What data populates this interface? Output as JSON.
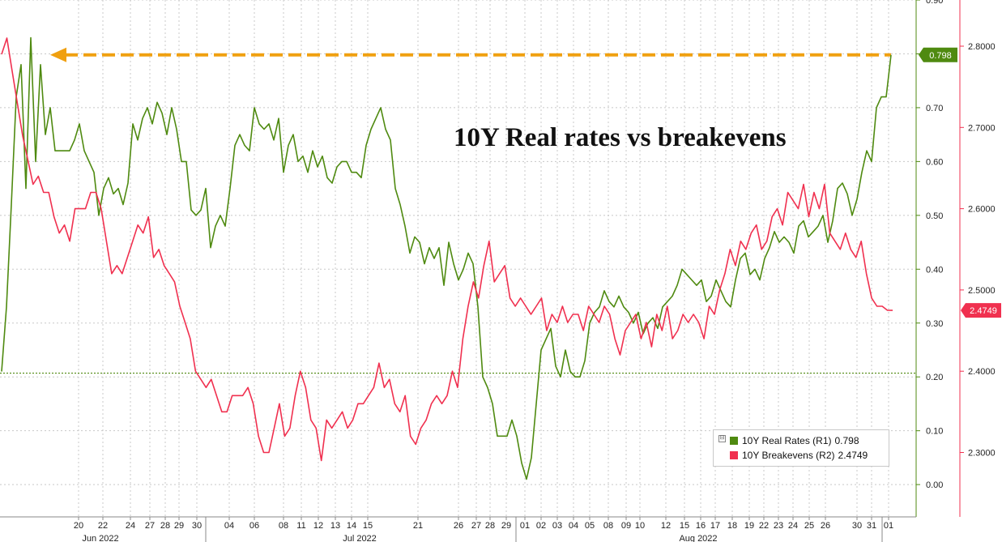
{
  "title": "10Y Real rates vs breakevens",
  "colors": {
    "real_rates": "#4f8a10",
    "breakevens": "#f0304f",
    "arrow": "#f0a010",
    "gridline": "#c8c8c8"
  },
  "legend": {
    "toggle_icon": "⊟",
    "items": [
      {
        "label": "10Y Real Rates (R1)",
        "value": "0.798"
      },
      {
        "label": "10Y Breakevens (R2)",
        "value": "2.4749"
      }
    ]
  },
  "chart_data": {
    "type": "line",
    "title": "10Y Real rates vs breakevens",
    "x_tick_labels": [
      "20",
      "22",
      "24",
      "27",
      "28",
      "29",
      "30",
      "04",
      "06",
      "08",
      "11",
      "12",
      "13",
      "14",
      "15",
      "21",
      "26",
      "27",
      "28",
      "29",
      "01",
      "02",
      "03",
      "04",
      "05",
      "08",
      "09",
      "10",
      "12",
      "15",
      "16",
      "17",
      "18",
      "19",
      "22",
      "23",
      "24",
      "25",
      "26",
      "30",
      "31",
      "01"
    ],
    "month_labels": [
      "Jun 2022",
      "Jul 2022",
      "Aug 2022"
    ],
    "axes": {
      "R1": {
        "min": -0.06,
        "max": 0.9,
        "ticks": [
          "0.90",
          "0.80",
          "0.70",
          "0.60",
          "0.50",
          "0.40",
          "0.30",
          "0.20",
          "0.10",
          "0.00"
        ]
      },
      "R2": {
        "min": 2.2,
        "max": 2.82,
        "ticks": [
          "2.8000",
          "2.7000",
          "2.6000",
          "2.5000",
          "2.4000",
          "2.3000"
        ]
      }
    },
    "grid": true,
    "legend_position": "bottom-right",
    "series": [
      {
        "name": "10Y Real Rates (R1)",
        "axis": "R1",
        "last_value": "0.798",
        "values": [
          0.21,
          0.33,
          0.52,
          0.72,
          0.78,
          0.55,
          0.83,
          0.6,
          0.78,
          0.65,
          0.7,
          0.62,
          0.62,
          0.62,
          0.62,
          0.64,
          0.67,
          0.62,
          0.6,
          0.58,
          0.5,
          0.55,
          0.57,
          0.54,
          0.55,
          0.52,
          0.56,
          0.67,
          0.64,
          0.68,
          0.7,
          0.67,
          0.71,
          0.69,
          0.65,
          0.7,
          0.66,
          0.6,
          0.6,
          0.51,
          0.5,
          0.51,
          0.55,
          0.44,
          0.48,
          0.5,
          0.48,
          0.55,
          0.63,
          0.65,
          0.63,
          0.62,
          0.7,
          0.67,
          0.66,
          0.67,
          0.64,
          0.68,
          0.58,
          0.63,
          0.65,
          0.6,
          0.61,
          0.58,
          0.62,
          0.59,
          0.61,
          0.57,
          0.56,
          0.59,
          0.6,
          0.6,
          0.58,
          0.58,
          0.57,
          0.63,
          0.66,
          0.68,
          0.7,
          0.66,
          0.64,
          0.55,
          0.52,
          0.48,
          0.43,
          0.46,
          0.45,
          0.41,
          0.44,
          0.42,
          0.44,
          0.37,
          0.45,
          0.41,
          0.38,
          0.4,
          0.43,
          0.41,
          0.33,
          0.2,
          0.18,
          0.15,
          0.09,
          0.09,
          0.09,
          0.12,
          0.09,
          0.04,
          0.01,
          0.05,
          0.15,
          0.25,
          0.27,
          0.29,
          0.22,
          0.2,
          0.25,
          0.21,
          0.2,
          0.2,
          0.23,
          0.3,
          0.32,
          0.33,
          0.36,
          0.34,
          0.33,
          0.35,
          0.33,
          0.32,
          0.3,
          0.32,
          0.28,
          0.3,
          0.31,
          0.29,
          0.33,
          0.34,
          0.35,
          0.37,
          0.4,
          0.39,
          0.38,
          0.37,
          0.38,
          0.34,
          0.35,
          0.38,
          0.36,
          0.34,
          0.33,
          0.38,
          0.42,
          0.43,
          0.39,
          0.4,
          0.38,
          0.42,
          0.44,
          0.47,
          0.45,
          0.46,
          0.45,
          0.43,
          0.48,
          0.49,
          0.46,
          0.47,
          0.48,
          0.5,
          0.45,
          0.49,
          0.55,
          0.56,
          0.54,
          0.5,
          0.53,
          0.58,
          0.62,
          0.6,
          0.7,
          0.72,
          0.72,
          0.798
        ]
      },
      {
        "name": "10Y Breakevens (R2)",
        "axis": "R2",
        "last_value": "2.4749",
        "values": [
          2.79,
          2.81,
          2.77,
          2.73,
          2.69,
          2.66,
          2.63,
          2.64,
          2.62,
          2.62,
          2.59,
          2.57,
          2.58,
          2.56,
          2.6,
          2.6,
          2.6,
          2.62,
          2.62,
          2.6,
          2.56,
          2.52,
          2.53,
          2.52,
          2.54,
          2.56,
          2.58,
          2.57,
          2.59,
          2.54,
          2.55,
          2.53,
          2.52,
          2.51,
          2.48,
          2.46,
          2.44,
          2.4,
          2.39,
          2.38,
          2.39,
          2.37,
          2.35,
          2.35,
          2.37,
          2.37,
          2.37,
          2.38,
          2.36,
          2.32,
          2.3,
          2.3,
          2.33,
          2.36,
          2.32,
          2.33,
          2.37,
          2.4,
          2.38,
          2.34,
          2.33,
          2.29,
          2.34,
          2.33,
          2.34,
          2.35,
          2.33,
          2.34,
          2.36,
          2.36,
          2.37,
          2.38,
          2.41,
          2.38,
          2.39,
          2.36,
          2.35,
          2.37,
          2.32,
          2.31,
          2.33,
          2.34,
          2.36,
          2.37,
          2.36,
          2.37,
          2.4,
          2.38,
          2.44,
          2.48,
          2.51,
          2.49,
          2.53,
          2.56,
          2.51,
          2.52,
          2.53,
          2.49,
          2.48,
          2.49,
          2.48,
          2.47,
          2.48,
          2.49,
          2.45,
          2.47,
          2.46,
          2.48,
          2.46,
          2.47,
          2.47,
          2.45,
          2.48,
          2.47,
          2.46,
          2.48,
          2.47,
          2.44,
          2.42,
          2.45,
          2.46,
          2.47,
          2.44,
          2.46,
          2.43,
          2.47,
          2.45,
          2.48,
          2.44,
          2.45,
          2.47,
          2.46,
          2.47,
          2.46,
          2.44,
          2.48,
          2.47,
          2.5,
          2.52,
          2.55,
          2.53,
          2.56,
          2.55,
          2.57,
          2.58,
          2.55,
          2.56,
          2.59,
          2.6,
          2.58,
          2.62,
          2.61,
          2.6,
          2.63,
          2.59,
          2.62,
          2.6,
          2.63,
          2.57,
          2.56,
          2.55,
          2.57,
          2.55,
          2.54,
          2.56,
          2.52,
          2.49,
          2.48,
          2.48,
          2.475,
          2.4749
        ]
      }
    ]
  }
}
